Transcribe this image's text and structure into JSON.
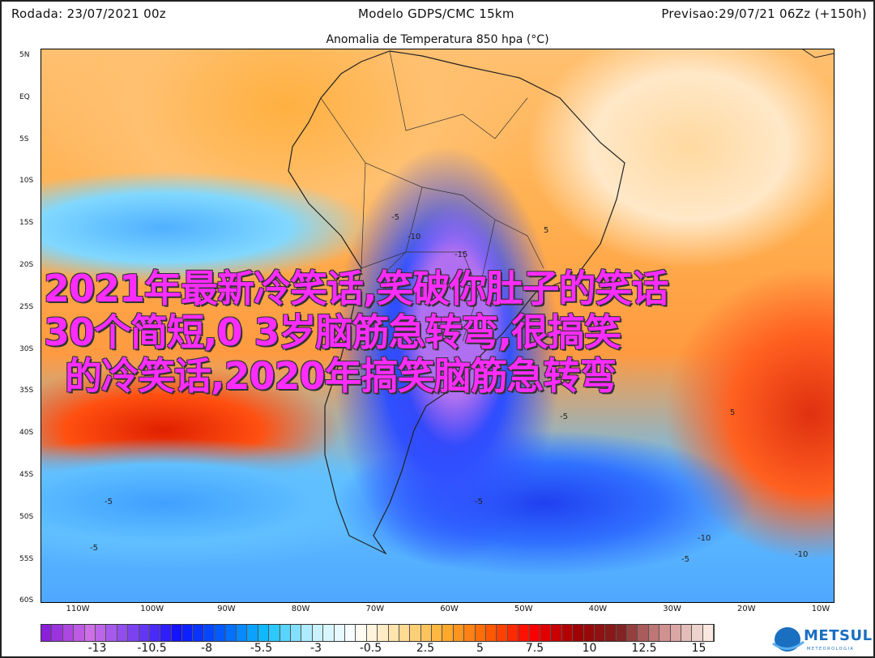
{
  "header": {
    "run": "Rodada: 23/07/2021 00z",
    "model": "Modelo GDPS/CMC 15km",
    "forecast": "Previsao:29/07/21 06Zz (+150h)",
    "title": "Anomalia de Temperatura 850 hpa (°C)"
  },
  "map": {
    "lat_labels": [
      "5N",
      "EQ",
      "5S",
      "10S",
      "15S",
      "20S",
      "25S",
      "30S",
      "35S",
      "40S",
      "45S",
      "50S",
      "55S",
      "60S"
    ],
    "lon_labels": [
      "110W",
      "100W",
      "90W",
      "80W",
      "70W",
      "60W",
      "50W",
      "40W",
      "30W",
      "20W",
      "10W"
    ],
    "contour_labels": [
      "-5",
      "-10",
      "-15",
      "5",
      "-5",
      "-5",
      "-5",
      "-5",
      "-10",
      "-10",
      "5",
      "-5"
    ]
  },
  "colorbar": {
    "labels": [
      "-13",
      "-10.5",
      "-8",
      "-5.5",
      "-3",
      "-0.5",
      "2.5",
      "5",
      "7.5",
      "10",
      "12.5",
      "15"
    ],
    "stops": [
      "#8a20d8",
      "#d070e8",
      "#7a40f0",
      "#1010ff",
      "#0060ff",
      "#10c0ff",
      "#c0f0ff",
      "#ffffff",
      "#ffe0a0",
      "#ffb030",
      "#ff6000",
      "#ff0000",
      "#a00000",
      "#802020",
      "#d09090",
      "#f8e8e0"
    ]
  },
  "logo": {
    "name": "METSUL",
    "sub": "METEOROLOGIA"
  },
  "overlay": {
    "line1": "2021年最新冷笑话,笑破你肚子的笑话",
    "line2": "30个简短,0 3岁脑筋急转弯,很搞笑",
    "line3": "的冷笑话,2020年搞笑脑筋急转弯"
  }
}
